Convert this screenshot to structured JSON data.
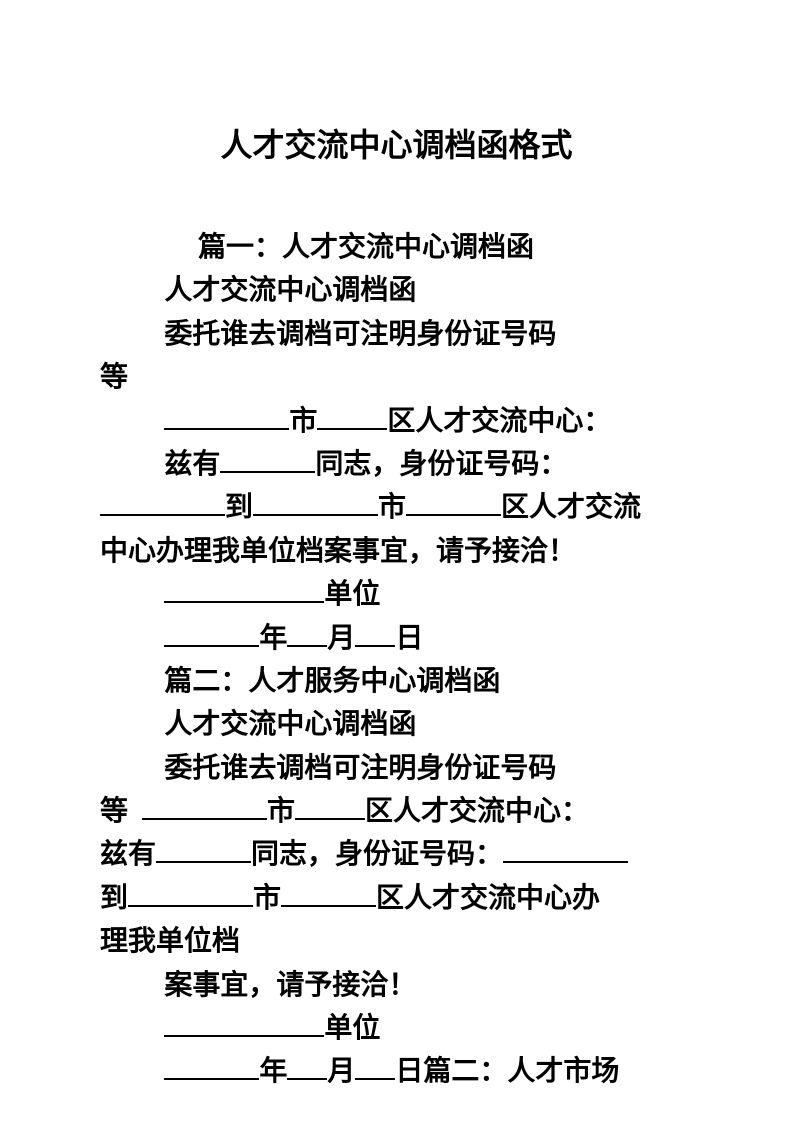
{
  "title": "人才交流中心调档函格式",
  "section1": {
    "heading": "篇一：人才交流中心调档函",
    "subheading": "人才交流中心调档函",
    "line1": "委托谁去调档可注明身份证号码",
    "line1_cont": "等",
    "city_label": "市",
    "district_label": "区人才交流中心：",
    "name_prefix": "兹有",
    "name_suffix": "同志，身份证号码：",
    "goto": "到",
    "city2": "市",
    "district2": "区人才交流",
    "center_line": "中心办理我单位档案事宜，请予接洽！",
    "unit_label": "单位",
    "year": "年",
    "month": "月",
    "day": "日"
  },
  "section2": {
    "heading": "篇二：人才服务中心调档函",
    "subheading": "人才交流中心调档函",
    "line1": "委托谁去调档可注明身份证号码",
    "deng": "等",
    "city_label": "市",
    "district_label": "区人才交流中心：",
    "name_prefix": "兹有",
    "name_suffix": "同志，身份证号码：",
    "goto": "到",
    "city2": "市",
    "district2": "区人才交流中心办",
    "center_line": "理我单位档",
    "matter": "案事宜，请予接洽！",
    "unit_label": "单位",
    "year": "年",
    "month": "月",
    "day": "日篇二：人才市场"
  }
}
